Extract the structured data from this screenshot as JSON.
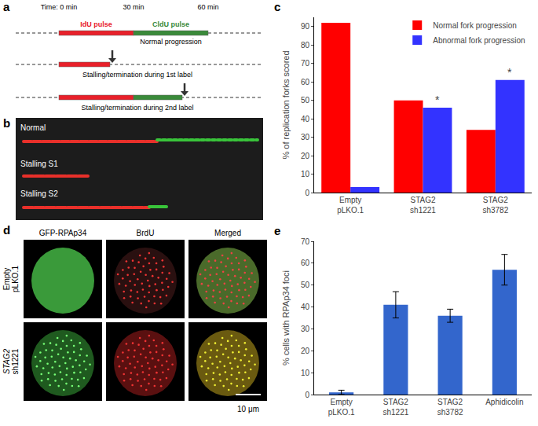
{
  "panel_labels": [
    "a",
    "b",
    "c",
    "d",
    "e"
  ],
  "diagram": {
    "a": {
      "time_labels": [
        "Time: 0 min",
        "30 min",
        "60 min"
      ],
      "pulses": [
        {
          "text": "IdU pulse",
          "color": "#e8202a"
        },
        {
          "text": "CldU pulse",
          "color": "#3a8a3a"
        }
      ],
      "rows": [
        "Normal progression",
        "Stalling/termination during 1st label",
        "Stalling/termination during 2nd label"
      ]
    },
    "b": {
      "rows": [
        "Normal",
        "Stalling S1",
        "Stalling S2"
      ]
    },
    "d": {
      "columns": [
        "GFP-RPAp34",
        "BrdU",
        "Merged"
      ],
      "rows": [
        "Empty pLKO.1",
        "STAG2 sh1221"
      ],
      "scale_bar": "10 μm"
    }
  },
  "chart_data": [
    {
      "type": "bar",
      "y_label": "% of replication forks scored",
      "categories": [
        "Empty pLKO.1",
        "STAG2 sh1221",
        "STAG2 sh3782"
      ],
      "series": [
        {
          "name": "Normal fork progression",
          "color": "#ff0000",
          "values": [
            92,
            50,
            34
          ]
        },
        {
          "name": "Abnormal fork progression",
          "color": "#3333ff",
          "values": [
            3,
            46,
            61
          ]
        }
      ],
      "annotations": [
        {
          "text": "*",
          "category": "STAG2 sh1221",
          "series": "Abnormal fork progression"
        },
        {
          "text": "*",
          "category": "STAG2 sh3782",
          "series": "Abnormal fork progression"
        }
      ],
      "ylim": [
        0,
        95
      ],
      "yticks": [
        0,
        10,
        20,
        30,
        40,
        50,
        60,
        70,
        80,
        90
      ],
      "legend": "top right",
      "grid": false
    },
    {
      "type": "bar",
      "y_label": "% cells with RPAp34 foci",
      "categories": [
        "Empty pLKO.1",
        "STAG2 sh1221",
        "STAG2 sh3782",
        "Aphidicolin"
      ],
      "values": [
        1,
        41,
        36,
        57
      ],
      "errors": [
        1,
        6,
        3,
        7
      ],
      "color": "#3366cc",
      "ylim": [
        0,
        70
      ],
      "yticks": [
        0,
        10,
        20,
        30,
        40,
        50,
        60,
        70
      ],
      "grid": false
    }
  ]
}
